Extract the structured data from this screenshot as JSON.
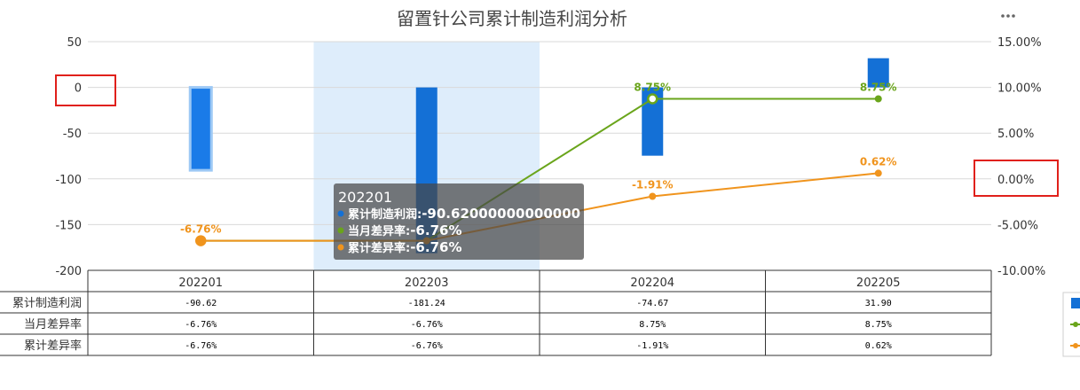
{
  "chart_data": {
    "type": "bar",
    "title": "留置针公司累计制造利润分析",
    "categories": [
      "202201",
      "202203",
      "202204",
      "202205"
    ],
    "y_left": {
      "min": -200,
      "max": 50,
      "step": 50,
      "ticks": [
        "50",
        "0",
        "-50",
        "-100",
        "-150",
        "-200"
      ]
    },
    "y_right": {
      "min": -10,
      "max": 15,
      "step": 5,
      "ticks": [
        "15.00%",
        "10.00%",
        "5.00%",
        "0.00%",
        "-5.00%",
        "-10.00%"
      ]
    },
    "series": [
      {
        "name": "累计制造利润",
        "kind": "bar",
        "axis": "left",
        "color": "#1470d6",
        "values": [
          -90.62,
          -181.24,
          -74.67,
          31.9
        ],
        "table_values": [
          "-90.62",
          "-181.24",
          "-74.67",
          "31.90"
        ]
      },
      {
        "name": "当月差异率",
        "kind": "line",
        "axis": "right",
        "color": "#6aa51b",
        "values": [
          -6.76,
          -6.76,
          8.75,
          8.75
        ],
        "labels": [
          "",
          "",
          "8.75%",
          "8.75%"
        ],
        "table_values": [
          "-6.76%",
          "-6.76%",
          "8.75%",
          "8.75%"
        ]
      },
      {
        "name": "累计差异率",
        "kind": "line",
        "axis": "right",
        "color": "#f0941d",
        "values": [
          -6.76,
          -6.76,
          -1.91,
          0.62
        ],
        "labels": [
          "-6.76%",
          "",
          "-1.91%",
          "0.62%"
        ],
        "table_values": [
          "-6.76%",
          "-6.76%",
          "-1.91%",
          "0.62%"
        ]
      }
    ],
    "highlighted_category": "202203",
    "tooltip": {
      "title": "202201",
      "rows": [
        {
          "name": "累计制造利润",
          "value": "-90.62000000000000",
          "color": "#1470d6"
        },
        {
          "name": "当月差异率",
          "value": "-6.76%",
          "color": "#6aa51b"
        },
        {
          "name": "累计差异率",
          "value": "-6.76%",
          "color": "#f0941d"
        }
      ]
    },
    "more_icon": "more-dots-icon",
    "annotation_color": "#e0201b"
  }
}
